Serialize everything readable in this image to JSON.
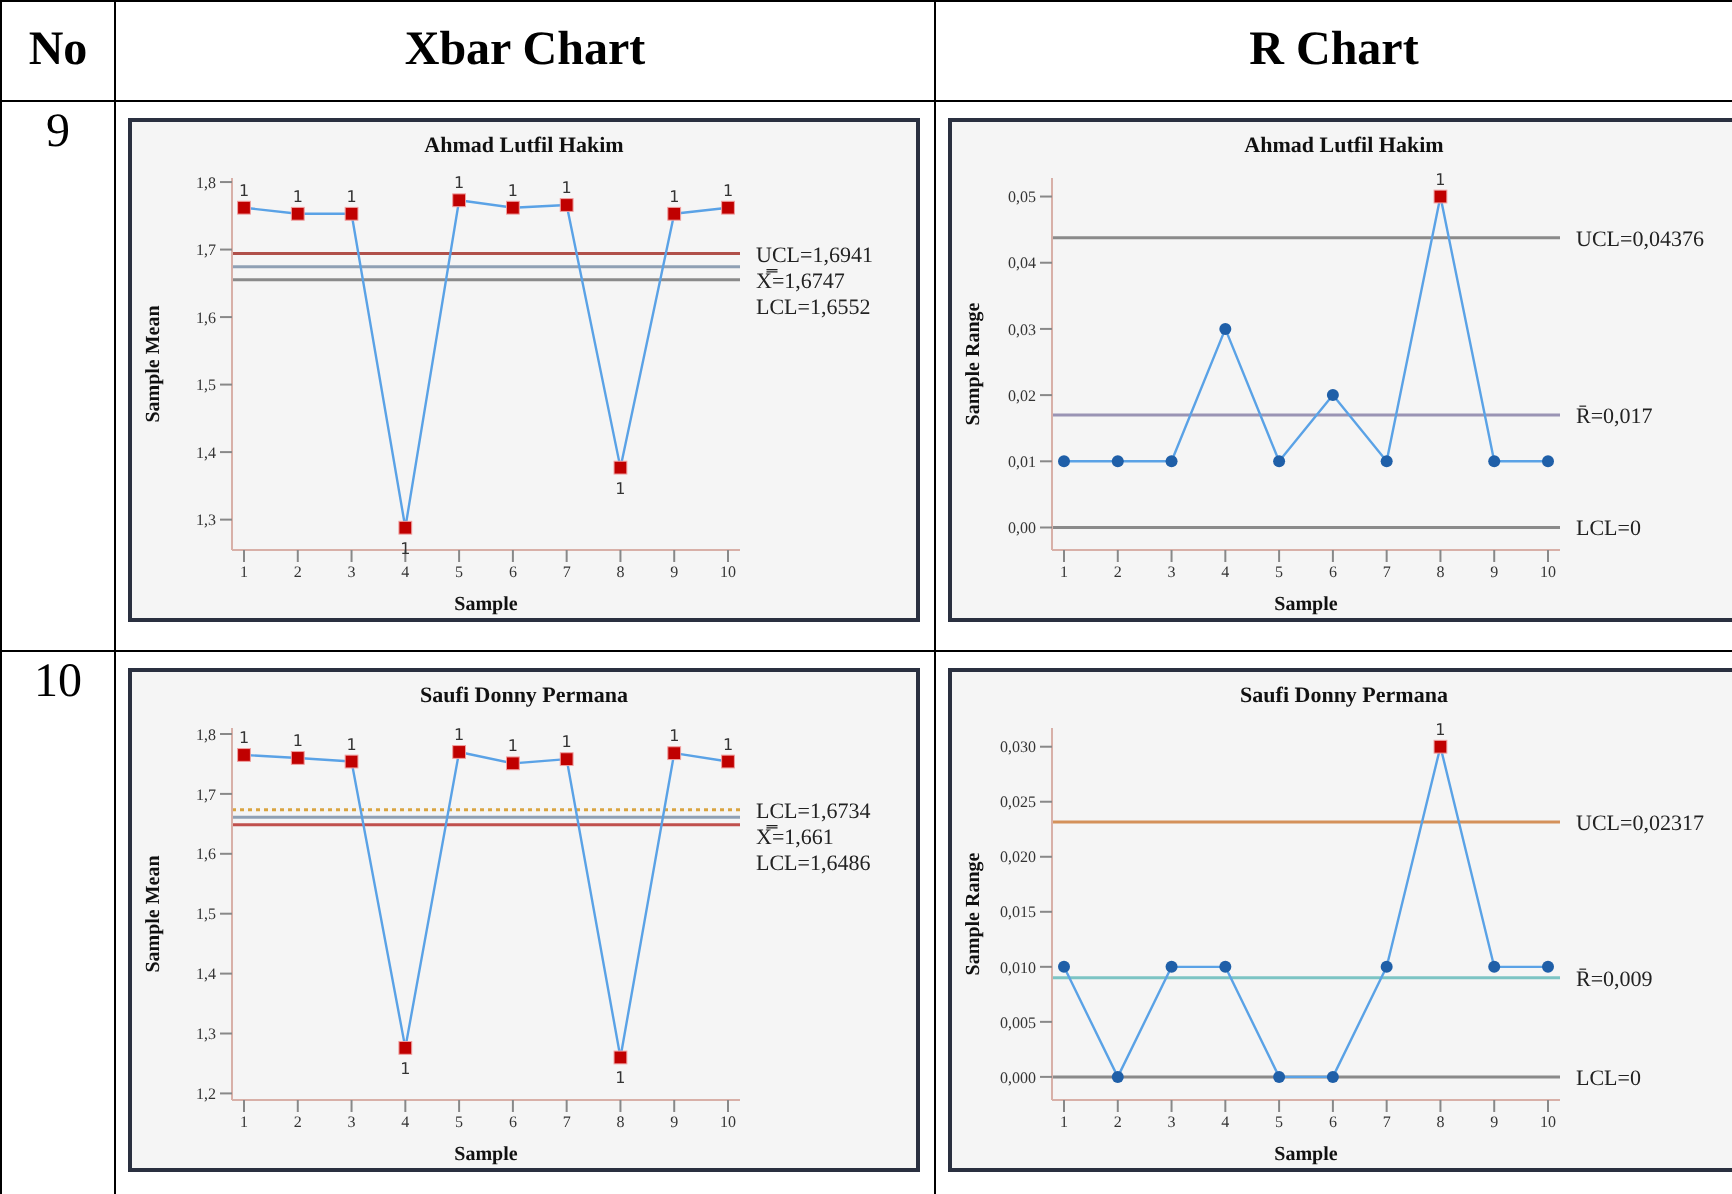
{
  "chart_data": [
    {
      "type": "line",
      "title": "Ahmad Lutfil Hakim",
      "xlabel": "Sample",
      "ylabel": "Sample Mean",
      "categories": [
        "1",
        "2",
        "3",
        "4",
        "5",
        "6",
        "7",
        "8",
        "9",
        "10"
      ],
      "series": [
        {
          "color": "#5aa2e6",
          "marker": "none",
          "values": [
            1.762,
            1.753,
            1.753,
            1.288,
            1.773,
            1.762,
            1.766,
            1.377,
            1.753,
            1.762
          ]
        },
        {
          "type": "scatter",
          "color": "#c00000",
          "marker": "square",
          "values": [
            1.762,
            1.753,
            1.753,
            1.288,
            1.773,
            1.762,
            1.766,
            1.377,
            1.753,
            1.762
          ]
        }
      ],
      "ylim": [
        1.255,
        1.806
      ],
      "yticks": [
        {
          "value": 1.3,
          "label": "1,3"
        },
        {
          "value": 1.4,
          "label": "1,4"
        },
        {
          "value": 1.5,
          "label": "1,5"
        },
        {
          "value": 1.6,
          "label": "1,6"
        },
        {
          "value": 1.7,
          "label": "1,7"
        },
        {
          "value": 1.8,
          "label": "1,8"
        }
      ],
      "ref_lines": [
        {
          "axis": "y",
          "value": 1.6941,
          "label": "UCL=1,6941",
          "color": "#b0504a"
        },
        {
          "axis": "y",
          "value": 1.6747,
          "label": "X̿=1,6747",
          "color": "#8fa0b4"
        },
        {
          "axis": "y",
          "value": 1.6552,
          "label": "LCL=1,6552",
          "color": "#8a8a8a"
        }
      ],
      "annotations": [
        "No",
        "Xbar Chart",
        "9",
        {
          "text": "1",
          "x": "1",
          "y": 1.762
        },
        {
          "text": "1",
          "x": "2",
          "y": 1.753
        },
        {
          "text": "1",
          "x": "3",
          "y": 1.753
        },
        {
          "text": "1",
          "x": "4",
          "y": 1.288
        },
        {
          "text": "1",
          "x": "5",
          "y": 1.773
        },
        {
          "text": "1",
          "x": "6",
          "y": 1.762
        },
        {
          "text": "1",
          "x": "7",
          "y": 1.766
        },
        {
          "text": "1",
          "x": "8",
          "y": 1.377
        },
        {
          "text": "1",
          "x": "9",
          "y": 1.753
        },
        {
          "text": "1",
          "x": "10",
          "y": 1.762
        }
      ],
      "grid": false
    },
    {
      "type": "line",
      "title": "Ahmad Lutfil Hakim",
      "xlabel": "Sample",
      "ylabel": "Sample Range",
      "categories": [
        "1",
        "2",
        "3",
        "4",
        "5",
        "6",
        "7",
        "8",
        "9",
        "10"
      ],
      "series": [
        {
          "color": "#5aa2e6",
          "marker": "circle",
          "values": [
            0.01,
            0.01,
            0.01,
            0.03,
            0.01,
            0.02,
            0.01,
            0.05,
            0.01,
            0.01
          ]
        },
        {
          "type": "scatter",
          "color": "#c00000",
          "marker": "square",
          "values": [
            null,
            null,
            null,
            null,
            null,
            null,
            null,
            0.05,
            null,
            null
          ]
        }
      ],
      "ylim": [
        -0.0034,
        0.0528
      ],
      "yticks": [
        {
          "value": 0,
          "label": "0,00"
        },
        {
          "value": 0.01,
          "label": "0,01"
        },
        {
          "value": 0.02,
          "label": "0,02"
        },
        {
          "value": 0.03,
          "label": "0,03"
        },
        {
          "value": 0.04,
          "label": "0,04"
        },
        {
          "value": 0.05,
          "label": "0,05"
        }
      ],
      "ref_lines": [
        {
          "axis": "y",
          "value": 0.04376,
          "label": "UCL=0,04376",
          "color": "#8a8a8a"
        },
        {
          "axis": "y",
          "value": 0.017,
          "label": "R̄=0,017",
          "color": "#9a94b4"
        },
        {
          "axis": "y",
          "value": 0,
          "label": "LCL=0",
          "color": "#8a8a8a"
        }
      ],
      "annotations": [
        "R Chart",
        {
          "text": "1",
          "x": "8",
          "y": 0.05
        }
      ],
      "grid": false
    },
    {
      "type": "line",
      "title": "Saufi Donny Permana",
      "xlabel": "Sample",
      "ylabel": "Sample Mean",
      "categories": [
        "1",
        "2",
        "3",
        "4",
        "5",
        "6",
        "7",
        "8",
        "9",
        "10"
      ],
      "series": [
        {
          "color": "#5aa2e6",
          "marker": "none",
          "values": [
            1.765,
            1.76,
            1.754,
            1.276,
            1.77,
            1.751,
            1.758,
            1.26,
            1.768,
            1.754
          ]
        },
        {
          "type": "scatter",
          "color": "#c00000",
          "marker": "square",
          "values": [
            1.765,
            1.76,
            1.754,
            1.276,
            1.77,
            1.751,
            1.758,
            1.26,
            1.768,
            1.754
          ]
        }
      ],
      "ylim": [
        1.189,
        1.81
      ],
      "yticks": [
        {
          "value": 1.2,
          "label": "1,2"
        },
        {
          "value": 1.3,
          "label": "1,3"
        },
        {
          "value": 1.4,
          "label": "1,4"
        },
        {
          "value": 1.5,
          "label": "1,5"
        },
        {
          "value": 1.6,
          "label": "1,6"
        },
        {
          "value": 1.7,
          "label": "1,7"
        },
        {
          "value": 1.8,
          "label": "1,8"
        }
      ],
      "ref_lines": [
        {
          "axis": "y",
          "value": 1.6734,
          "label": "LCL=1,6734",
          "color": "#d9a441",
          "line_style": "dotted"
        },
        {
          "axis": "y",
          "value": 1.661,
          "label": "X̿=1,661",
          "color": "#8fa0b4"
        },
        {
          "axis": "y",
          "value": 1.6486,
          "label": "LCL=1,6486",
          "color": "#c0504d"
        }
      ],
      "annotations": [
        "10",
        {
          "text": "1",
          "x": "1",
          "y": 1.765
        },
        {
          "text": "1",
          "x": "2",
          "y": 1.76
        },
        {
          "text": "1",
          "x": "3",
          "y": 1.754
        },
        {
          "text": "1",
          "x": "4",
          "y": 1.276
        },
        {
          "text": "1",
          "x": "5",
          "y": 1.77
        },
        {
          "text": "1",
          "x": "6",
          "y": 1.751
        },
        {
          "text": "1",
          "x": "7",
          "y": 1.758
        },
        {
          "text": "1",
          "x": "8",
          "y": 1.26
        },
        {
          "text": "1",
          "x": "9",
          "y": 1.768
        },
        {
          "text": "1",
          "x": "10",
          "y": 1.754
        }
      ],
      "grid": false
    },
    {
      "type": "line",
      "title": "Saufi Donny Permana",
      "xlabel": "Sample",
      "ylabel": "Sample Range",
      "categories": [
        "1",
        "2",
        "3",
        "4",
        "5",
        "6",
        "7",
        "8",
        "9",
        "10"
      ],
      "series": [
        {
          "color": "#5aa2e6",
          "marker": "circle",
          "values": [
            0.01,
            0,
            0.01,
            0.01,
            0,
            0,
            0.01,
            0.03,
            0.01,
            0.01
          ]
        },
        {
          "type": "scatter",
          "color": "#c00000",
          "marker": "square",
          "values": [
            null,
            null,
            null,
            null,
            null,
            null,
            null,
            0.03,
            null,
            null
          ]
        }
      ],
      "ylim": [
        -0.0021,
        0.0317
      ],
      "yticks": [
        {
          "value": 0,
          "label": "0,000"
        },
        {
          "value": 0.005,
          "label": "0,005"
        },
        {
          "value": 0.01,
          "label": "0,010"
        },
        {
          "value": 0.015,
          "label": "0,015"
        },
        {
          "value": 0.02,
          "label": "0,020"
        },
        {
          "value": 0.025,
          "label": "0,025"
        },
        {
          "value": 0.03,
          "label": "0,030"
        }
      ],
      "ref_lines": [
        {
          "axis": "y",
          "value": 0.02317,
          "label": "UCL=0,02317",
          "color": "#d4915a"
        },
        {
          "axis": "y",
          "value": 0.009,
          "label": "R̄=0,009",
          "color": "#7cc4c4"
        },
        {
          "axis": "y",
          "value": 0,
          "label": "LCL=0",
          "color": "#8a8a8a"
        }
      ],
      "annotations": [
        {
          "text": "1",
          "x": "8",
          "y": 0.03
        }
      ],
      "grid": false
    }
  ]
}
